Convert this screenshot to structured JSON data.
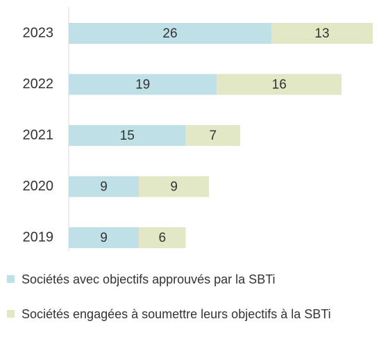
{
  "chart_data": {
    "type": "stacked-bar-horizontal",
    "categories": [
      "2023",
      "2022",
      "2021",
      "2020",
      "2019"
    ],
    "series": [
      {
        "name": "Sociétés avec objectifs approuvés par la SBTi",
        "color": "#c0e0e7",
        "values": [
          26,
          19,
          15,
          9,
          9
        ]
      },
      {
        "name": "Sociétés engagées à soumettre leurs objectifs à la SBTi",
        "color": "#e2e7c5",
        "values": [
          13,
          16,
          7,
          9,
          6
        ]
      }
    ]
  }
}
